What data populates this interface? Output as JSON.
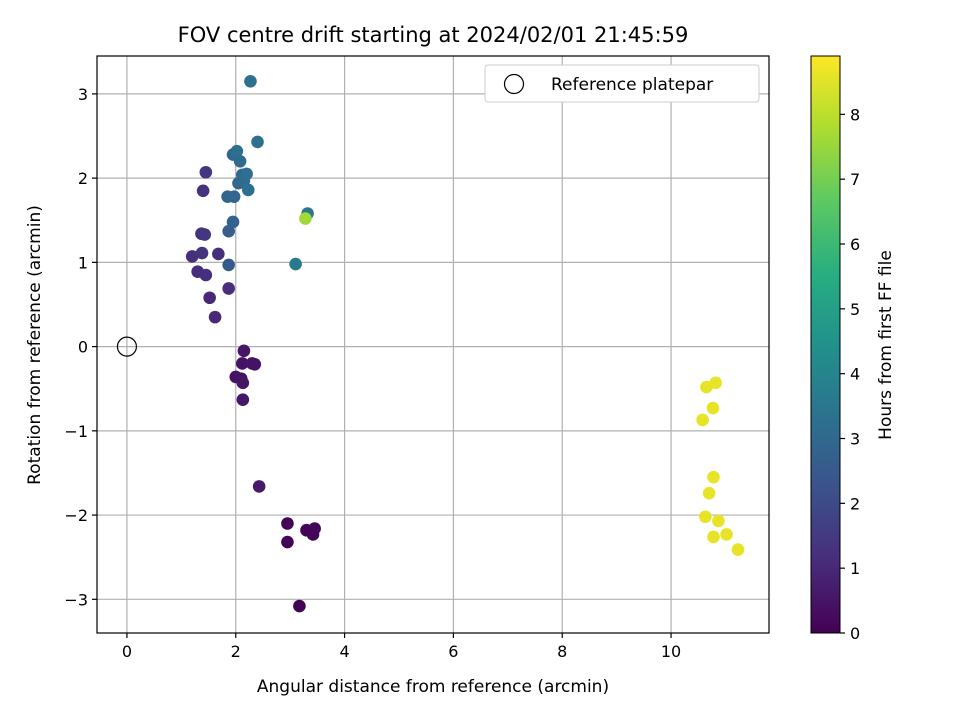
{
  "chart_data": {
    "type": "scatter",
    "title": "FOV centre drift starting at 2024/02/01 21:45:59",
    "xlabel": "Angular distance from reference (arcmin)",
    "ylabel": "Rotation from reference (arcmin)",
    "xlim": [
      -0.55,
      11.8
    ],
    "ylim": [
      -3.4,
      3.45
    ],
    "xticks": [
      0,
      2,
      4,
      6,
      8,
      10
    ],
    "yticks": [
      -3,
      -2,
      -1,
      0,
      1,
      2,
      3
    ],
    "grid": true,
    "legend": {
      "position": "top-right",
      "entries": [
        "Reference platepar"
      ]
    },
    "reference_point": {
      "x": 0,
      "y": 0,
      "label": "Reference platepar"
    },
    "colorbar": {
      "label": "Hours from first FF file",
      "colormap": "viridis",
      "min": 0,
      "max": 8.9,
      "ticks": [
        0,
        1,
        2,
        3,
        4,
        5,
        6,
        7,
        8
      ]
    },
    "points": [
      {
        "x": 3.17,
        "y": -3.08,
        "h": 0.0
      },
      {
        "x": 2.95,
        "y": -2.32,
        "h": 0.1
      },
      {
        "x": 2.95,
        "y": -2.1,
        "h": 0.1
      },
      {
        "x": 3.3,
        "y": -2.18,
        "h": 0.1
      },
      {
        "x": 3.42,
        "y": -2.23,
        "h": 0.1
      },
      {
        "x": 3.45,
        "y": -2.16,
        "h": 0.15
      },
      {
        "x": 2.43,
        "y": -1.66,
        "h": 0.6
      },
      {
        "x": 2.0,
        "y": -0.36,
        "h": 0.4
      },
      {
        "x": 2.1,
        "y": -0.38,
        "h": 0.45
      },
      {
        "x": 2.13,
        "y": -0.43,
        "h": 0.5
      },
      {
        "x": 2.13,
        "y": -0.63,
        "h": 0.55
      },
      {
        "x": 2.12,
        "y": -0.2,
        "h": 0.45
      },
      {
        "x": 2.3,
        "y": -0.2,
        "h": 0.5
      },
      {
        "x": 2.35,
        "y": -0.21,
        "h": 0.45
      },
      {
        "x": 2.15,
        "y": -0.05,
        "h": 0.55
      },
      {
        "x": 1.62,
        "y": 0.35,
        "h": 1.0
      },
      {
        "x": 1.52,
        "y": 0.58,
        "h": 1.0
      },
      {
        "x": 1.87,
        "y": 0.69,
        "h": 1.1
      },
      {
        "x": 1.45,
        "y": 0.85,
        "h": 1.2
      },
      {
        "x": 1.3,
        "y": 0.89,
        "h": 1.1
      },
      {
        "x": 1.2,
        "y": 1.07,
        "h": 1.2
      },
      {
        "x": 1.38,
        "y": 1.11,
        "h": 1.3
      },
      {
        "x": 1.68,
        "y": 1.1,
        "h": 1.2
      },
      {
        "x": 1.37,
        "y": 1.34,
        "h": 1.3
      },
      {
        "x": 1.43,
        "y": 1.33,
        "h": 1.4
      },
      {
        "x": 1.4,
        "y": 1.85,
        "h": 1.3
      },
      {
        "x": 1.45,
        "y": 2.07,
        "h": 1.4
      },
      {
        "x": 1.87,
        "y": 0.97,
        "h": 2.5
      },
      {
        "x": 1.87,
        "y": 1.37,
        "h": 2.6
      },
      {
        "x": 1.95,
        "y": 1.48,
        "h": 2.8
      },
      {
        "x": 1.85,
        "y": 1.78,
        "h": 2.9
      },
      {
        "x": 1.97,
        "y": 1.78,
        "h": 3.0
      },
      {
        "x": 2.05,
        "y": 1.94,
        "h": 3.0
      },
      {
        "x": 2.15,
        "y": 1.97,
        "h": 3.1
      },
      {
        "x": 2.23,
        "y": 1.86,
        "h": 3.2
      },
      {
        "x": 2.12,
        "y": 2.04,
        "h": 3.1
      },
      {
        "x": 2.2,
        "y": 2.05,
        "h": 3.2
      },
      {
        "x": 2.08,
        "y": 2.2,
        "h": 3.1
      },
      {
        "x": 1.95,
        "y": 2.28,
        "h": 3.0
      },
      {
        "x": 2.02,
        "y": 2.32,
        "h": 3.2
      },
      {
        "x": 2.4,
        "y": 2.43,
        "h": 3.3
      },
      {
        "x": 2.27,
        "y": 3.15,
        "h": 3.3
      },
      {
        "x": 3.1,
        "y": 0.98,
        "h": 3.6
      },
      {
        "x": 3.32,
        "y": 1.58,
        "h": 3.5
      },
      {
        "x": 3.28,
        "y": 1.52,
        "h": 7.6
      },
      {
        "x": 10.58,
        "y": -0.87,
        "h": 8.6
      },
      {
        "x": 10.65,
        "y": -0.48,
        "h": 8.6
      },
      {
        "x": 10.82,
        "y": -0.43,
        "h": 8.6
      },
      {
        "x": 10.77,
        "y": -0.73,
        "h": 8.6
      },
      {
        "x": 10.78,
        "y": -1.55,
        "h": 8.6
      },
      {
        "x": 10.7,
        "y": -1.74,
        "h": 8.6
      },
      {
        "x": 10.63,
        "y": -2.02,
        "h": 8.6
      },
      {
        "x": 10.87,
        "y": -2.07,
        "h": 8.6
      },
      {
        "x": 10.78,
        "y": -2.26,
        "h": 8.6
      },
      {
        "x": 11.02,
        "y": -2.23,
        "h": 8.6
      },
      {
        "x": 11.23,
        "y": -2.41,
        "h": 8.6
      }
    ]
  }
}
